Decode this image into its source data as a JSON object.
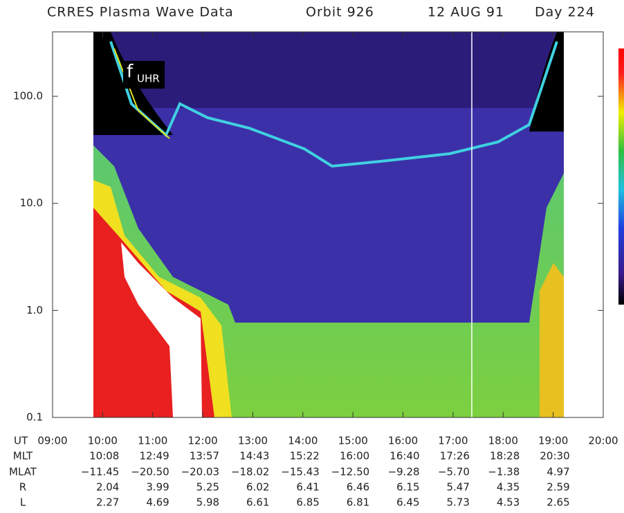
{
  "chart_data": {
    "type": "spectrogram",
    "title": "CRRES Plasma Wave Data",
    "orbit": "Orbit 926",
    "date": "12 AUG 91",
    "day": "Day 224",
    "annotation": {
      "text": "f",
      "subscript": "UHR"
    },
    "log_y": true,
    "ylim": [
      0.1,
      400
    ],
    "yticks": [
      0.1,
      {
        "value": 1,
        "label": "1.0"
      },
      {
        "value": 10,
        "label": "10.0"
      },
      {
        "value": 100,
        "label": "100.0"
      }
    ],
    "xlim": [
      9,
      20
    ],
    "x_label": "UT",
    "xticks": [
      {
        "value": 9,
        "label": "09:00"
      },
      {
        "value": 10,
        "label": "10:00"
      },
      {
        "value": 11,
        "label": "11:00"
      },
      {
        "value": 12,
        "label": "12:00"
      },
      {
        "value": 13,
        "label": "13:00"
      },
      {
        "value": 14,
        "label": "14:00"
      },
      {
        "value": 15,
        "label": "15:00"
      },
      {
        "value": 16,
        "label": "16:00"
      },
      {
        "value": 17,
        "label": "17:00"
      },
      {
        "value": 18,
        "label": "18:00"
      },
      {
        "value": 19,
        "label": "19:00"
      },
      {
        "value": 20,
        "label": "20:00"
      }
    ],
    "ephemeris": [
      {
        "name": "MLT",
        "values": [
          "10:08",
          "12:49",
          "13:57",
          "14:43",
          "15:22",
          "16:00",
          "16:40",
          "17:26",
          "18:28",
          "20:30"
        ]
      },
      {
        "name": "MLAT",
        "values": [
          "−11.45",
          "−20.50",
          "−20.03",
          "−18.02",
          "−15.43",
          "−12.50",
          "−9.28",
          "−5.70",
          "−1.38",
          "4.97"
        ]
      },
      {
        "name": "R",
        "values": [
          2.04,
          3.99,
          5.25,
          6.02,
          6.41,
          6.46,
          6.15,
          5.47,
          4.35,
          2.59
        ]
      },
      {
        "name": "L",
        "values": [
          2.27,
          4.69,
          5.98,
          6.61,
          6.85,
          6.81,
          6.45,
          5.73,
          4.53,
          2.65
        ]
      }
    ]
  }
}
